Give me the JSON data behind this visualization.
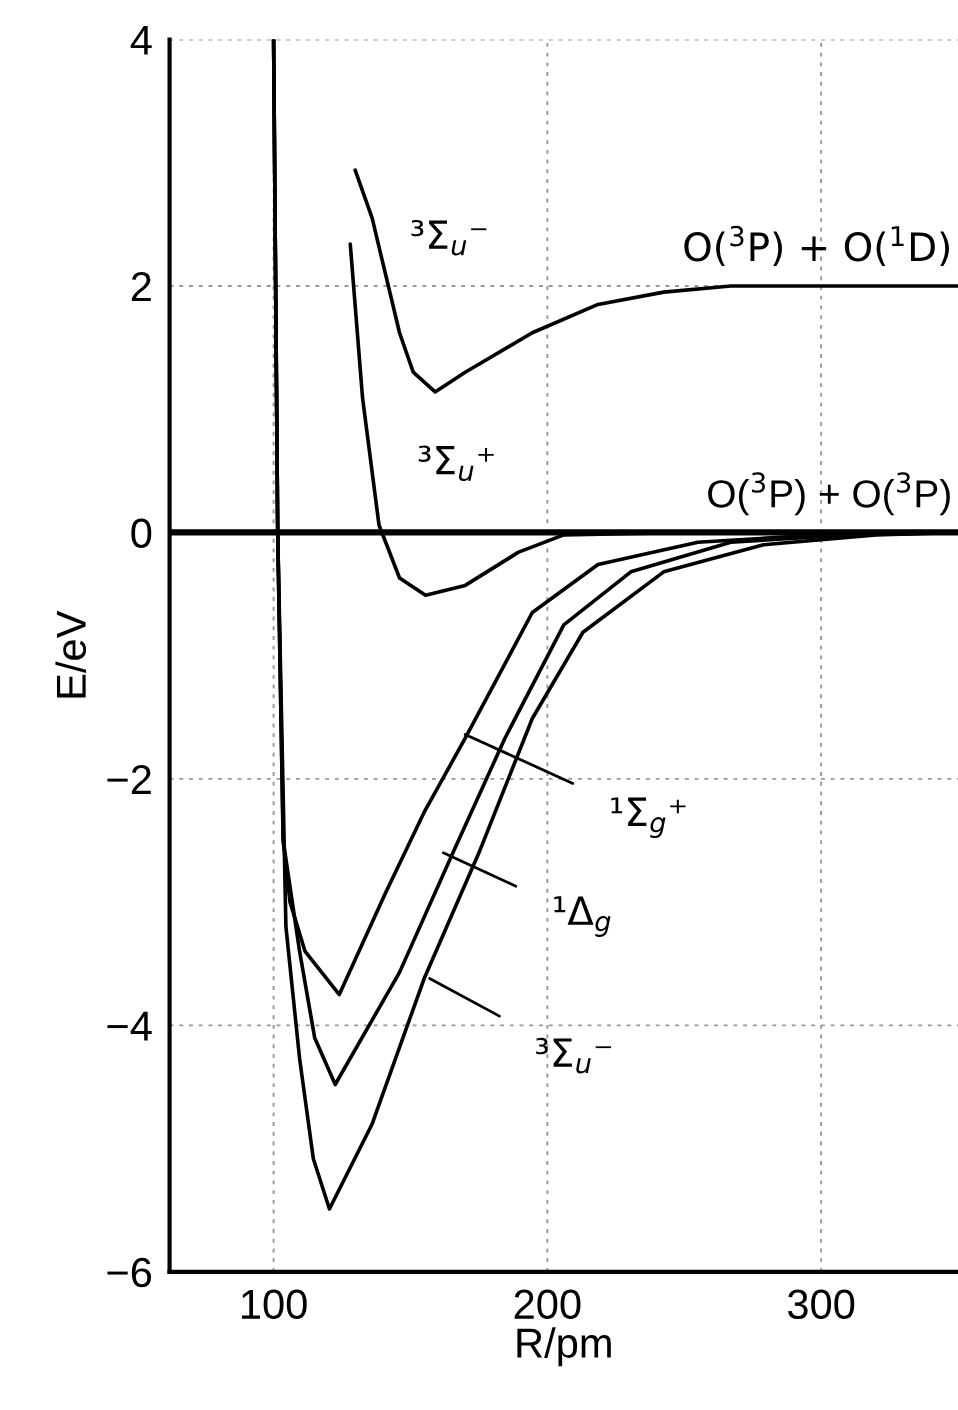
{
  "chart_data": {
    "type": "line",
    "xlabel": "R/pm",
    "ylabel": "E/eV",
    "xlim": [
      62,
      350
    ],
    "ylim": [
      -6,
      4
    ],
    "xticks": [
      100,
      200,
      300
    ],
    "yticks": [
      -6,
      -4,
      -2,
      0,
      2,
      4
    ],
    "grid": true,
    "line_style": "solid",
    "marker": "none",
    "series": [
      {
        "color": "#000000",
        "x": [
          129.8,
          136,
          146,
          151,
          159,
          170,
          194.5,
          218.5,
          242.5,
          267,
          300,
          350
        ],
        "values": [
          2.94,
          2.55,
          1.62,
          1.3,
          1.14,
          1.3,
          1.62,
          1.85,
          1.95,
          2.0,
          2.0,
          2.0
        ]
      },
      {
        "color": "#000000",
        "x": [
          128,
          132.5,
          138.5,
          146,
          155.5,
          170,
          189.5,
          206,
          250,
          350
        ],
        "values": [
          2.34,
          1.09,
          0.06,
          -0.37,
          -0.51,
          -0.43,
          -0.16,
          -0.02,
          0.0,
          0.0
        ]
      },
      {
        "color": "#000000",
        "x": [
          100,
          101.5,
          103.5,
          106,
          111.5,
          124,
          141,
          155,
          170,
          194.5,
          218.5,
          255,
          300,
          350
        ],
        "values": [
          4,
          0,
          -2.5,
          -3.0,
          -3.4,
          -3.75,
          -2.92,
          -2.27,
          -1.67,
          -0.65,
          -0.26,
          -0.08,
          -0.02,
          0.0
        ]
      },
      {
        "color": "#000000",
        "x": [
          100,
          101.5,
          103.5,
          109.5,
          115,
          122.5,
          146,
          165.5,
          184.5,
          206,
          230.5,
          267,
          310,
          350
        ],
        "values": [
          4,
          0,
          -2.5,
          -3.4,
          -4.1,
          -4.48,
          -3.57,
          -2.6,
          -1.67,
          -0.75,
          -0.32,
          -0.08,
          -0.02,
          0.0
        ]
      },
      {
        "color": "#000000",
        "x": [
          100,
          101.5,
          104.5,
          109.5,
          114.5,
          120.4,
          136,
          155,
          175,
          194.5,
          213,
          242.5,
          279,
          320,
          350
        ],
        "values": [
          4,
          0,
          -3.2,
          -4.27,
          -5.08,
          -5.49,
          -4.8,
          -3.62,
          -2.6,
          -1.51,
          -0.81,
          -0.32,
          -0.1,
          -0.02,
          0.0
        ]
      }
    ],
    "ref_lines": [
      {
        "axis": "y",
        "value": 0,
        "label": "O($^{3}$P) + O($^{3}$P)",
        "color": "#000000"
      }
    ],
    "annotations": [
      {
        "text": "³Σ$_{u}$⁻",
        "x": 146,
        "y": 1.62
      },
      {
        "text": "³Σ$_{u}$⁺",
        "x": 138.5,
        "y": 0.06
      },
      {
        "text": "¹Σ$_{g}$⁺",
        "x": 170,
        "y": -1.64
      },
      {
        "text": "¹Δ$_{g}$",
        "x": 162,
        "y": -2.6
      },
      {
        "text": "³Σ$_{u}$⁻",
        "x": 157,
        "y": -3.62
      },
      {
        "text": "O($^{3}$P) + O($^{1}$D)",
        "x": 350,
        "y": 2.0
      }
    ]
  }
}
